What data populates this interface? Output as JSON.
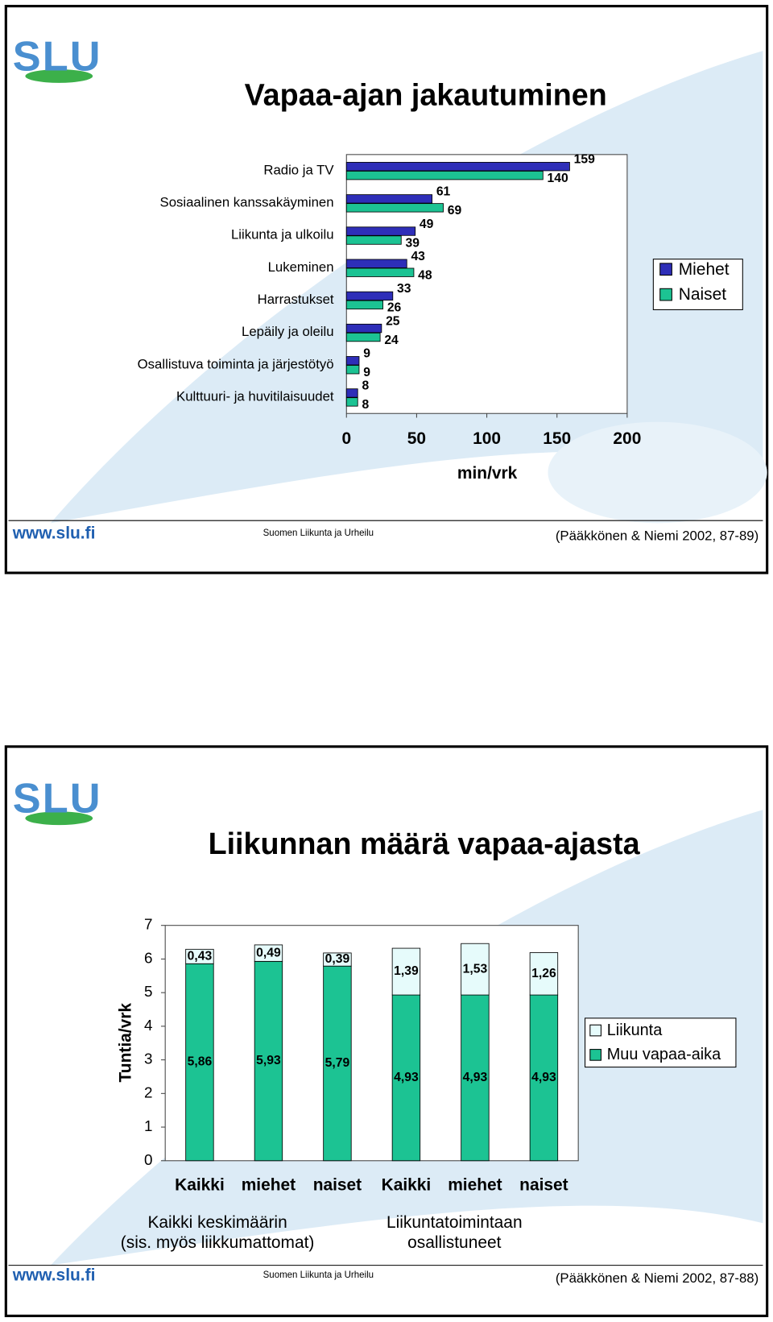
{
  "slides": [
    {
      "logo": "SLU",
      "url": "www.slu.fi",
      "footer": "Suomen Liikunta ja Urheilu",
      "source": "(Pääkkönen & Niemi 2002, 87-89)"
    },
    {
      "logo": "SLU",
      "url": "www.slu.fi",
      "footer": "Suomen Liikunta ja Urheilu",
      "source": "(Pääkkönen & Niemi 2002, 87-88)"
    }
  ],
  "chart_data": [
    {
      "type": "hbar",
      "title": "Vapaa-ajan jakautuminen",
      "x_label": "min/vrk",
      "categories": [
        "Radio ja TV",
        "Sosiaalinen kanssakäyminen",
        "Liikunta ja ulkoilu",
        "Lukeminen",
        "Harrastukset",
        "Lepäily ja oleilu",
        "Osallistuva toiminta ja järjestötyö",
        "Kulttuuri- ja huvitilaisuudet"
      ],
      "series": [
        {
          "name": "Miehet",
          "color": "#2e2eb8",
          "values": [
            159,
            61,
            49,
            43,
            33,
            25,
            9,
            8
          ]
        },
        {
          "name": "Naiset",
          "color": "#1cc393",
          "values": [
            140,
            69,
            39,
            48,
            26,
            24,
            9,
            8
          ]
        }
      ],
      "xlim": [
        0,
        200
      ],
      "xticks": [
        0,
        50,
        100,
        150,
        200
      ],
      "legend": "right"
    },
    {
      "type": "stacked_bar",
      "title": "Liikunnan määrä vapaa-ajasta",
      "y_label": "Tuntia/vrk",
      "categories": [
        "Kaikki",
        "miehet",
        "naiset",
        "Kaikki",
        "miehet",
        "naiset"
      ],
      "group_labels": [
        [
          "Kaikki keskimäärin",
          "(sis. myös liikkumattomat)"
        ],
        [
          "Liikuntatoimintaan",
          "osallistuneet"
        ]
      ],
      "series": [
        {
          "name": "Muu vapaa-aika",
          "color": "#1cc393",
          "values": [
            5.86,
            5.93,
            5.79,
            4.93,
            4.93,
            4.93
          ],
          "value_labels": [
            "5,86",
            "5,93",
            "5,79",
            "4,93",
            "4,93",
            "4,93"
          ]
        },
        {
          "name": "Liikunta",
          "color": "#e6fbfb",
          "values": [
            0.43,
            0.49,
            0.39,
            1.39,
            1.53,
            1.26
          ],
          "value_labels": [
            "0,43",
            "0,49",
            "0,39",
            "1,39",
            "1,53",
            "1,26"
          ]
        }
      ],
      "ylim": [
        0,
        7
      ],
      "yticks": [
        0,
        1,
        2,
        3,
        4,
        5,
        6,
        7
      ],
      "legend": "right"
    }
  ]
}
